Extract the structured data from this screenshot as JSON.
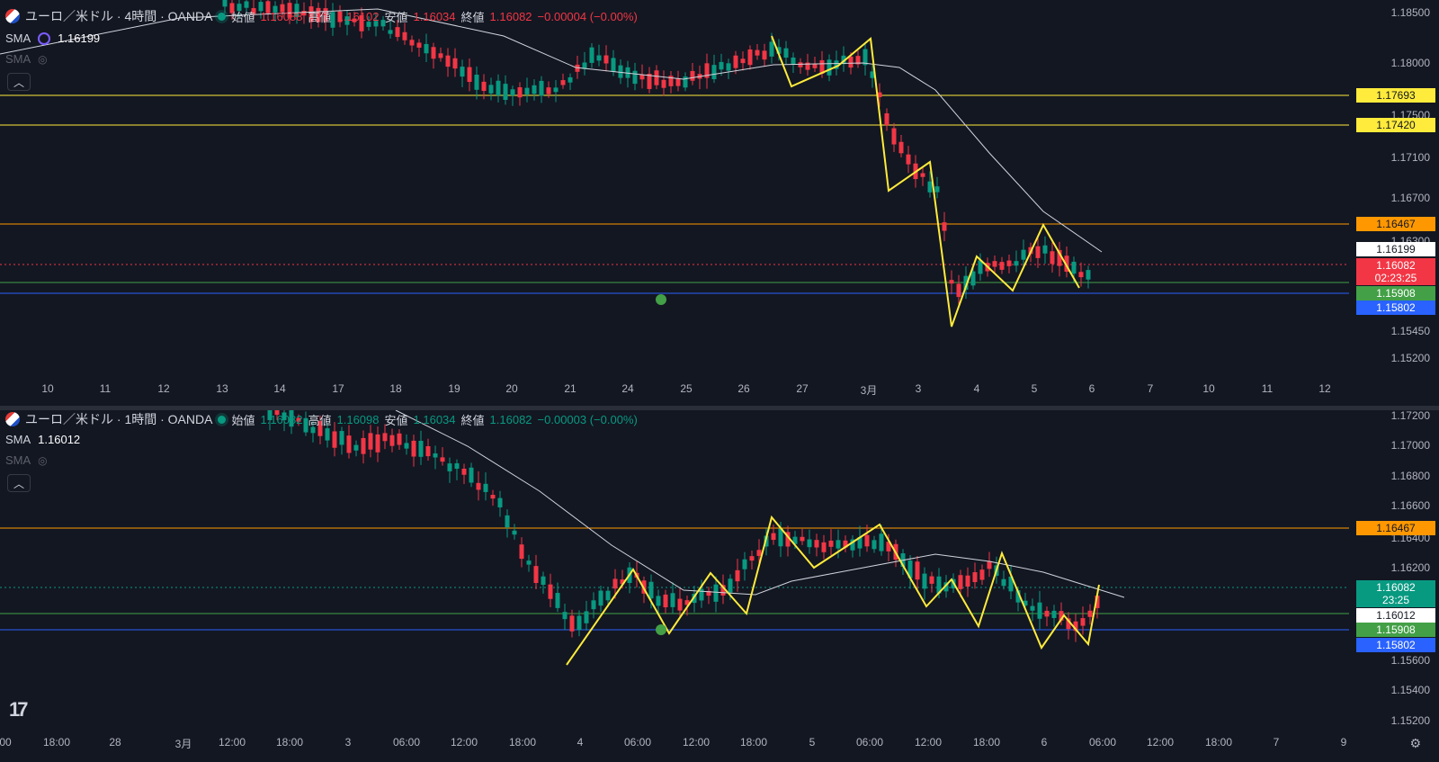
{
  "colors": {
    "up": "#089981",
    "down": "#f23645",
    "sma": "#d1d4dc",
    "zigzag": "#ffeb3b"
  },
  "top": {
    "symbol_title": "ユーロ／米ドル · 4時間 · OANDA",
    "ohlc": {
      "open_label": "始値",
      "open": "1.16088",
      "high_label": "高値",
      "high": "1.16102",
      "low_label": "安値",
      "low": "1.16034",
      "close_label": "終値",
      "close": "1.16082",
      "change": "−0.00004 (−0.00%)"
    },
    "sma1_label": "SMA",
    "sma1_value": "1.16199",
    "sma2_label": "SMA",
    "price_ticks": [
      "1.18500",
      "1.18000",
      "1.17500",
      "1.17100",
      "1.16700",
      "1.16300",
      "1.15450",
      "1.15200"
    ],
    "badges": {
      "y1": "1.17693",
      "y2": "1.17420",
      "orange": "1.16467",
      "sma": "1.16199",
      "close": "1.16082",
      "countdown": "02:23:25",
      "green": "1.15908",
      "blue": "1.15802"
    },
    "time_labels": [
      "10",
      "11",
      "12",
      "13",
      "14",
      "17",
      "18",
      "19",
      "20",
      "21",
      "24",
      "25",
      "26",
      "27",
      "3月",
      "3",
      "4",
      "5",
      "6",
      "7",
      "10",
      "11",
      "12"
    ]
  },
  "bottom": {
    "symbol_title": "ユーロ／米ドル · 1時間 · OANDA",
    "ohlc": {
      "open_label": "始値",
      "open": "1.16082",
      "high_label": "高値",
      "high": "1.16098",
      "low_label": "安値",
      "low": "1.16034",
      "close_label": "終値",
      "close": "1.16082",
      "change": "−0.00003 (−0.00%)"
    },
    "sma1_label": "SMA",
    "sma1_value": "1.16012",
    "sma2_label": "SMA",
    "price_ticks": [
      "1.17200",
      "1.17000",
      "1.16800",
      "1.16600",
      "1.16400",
      "1.16200",
      "1.15600",
      "1.15400",
      "1.15200"
    ],
    "badges": {
      "orange": "1.16467",
      "close": "1.16082",
      "countdown": "23:25",
      "sma": "1.16012",
      "green": "1.15908",
      "blue": "1.15802"
    },
    "time_labels": [
      "00",
      "18:00",
      "28",
      "3月",
      "12:00",
      "18:00",
      "3",
      "06:00",
      "12:00",
      "18:00",
      "4",
      "06:00",
      "12:00",
      "18:00",
      "5",
      "06:00",
      "12:00",
      "18:00",
      "6",
      "06:00",
      "12:00",
      "18:00",
      "7",
      "9"
    ]
  }
}
